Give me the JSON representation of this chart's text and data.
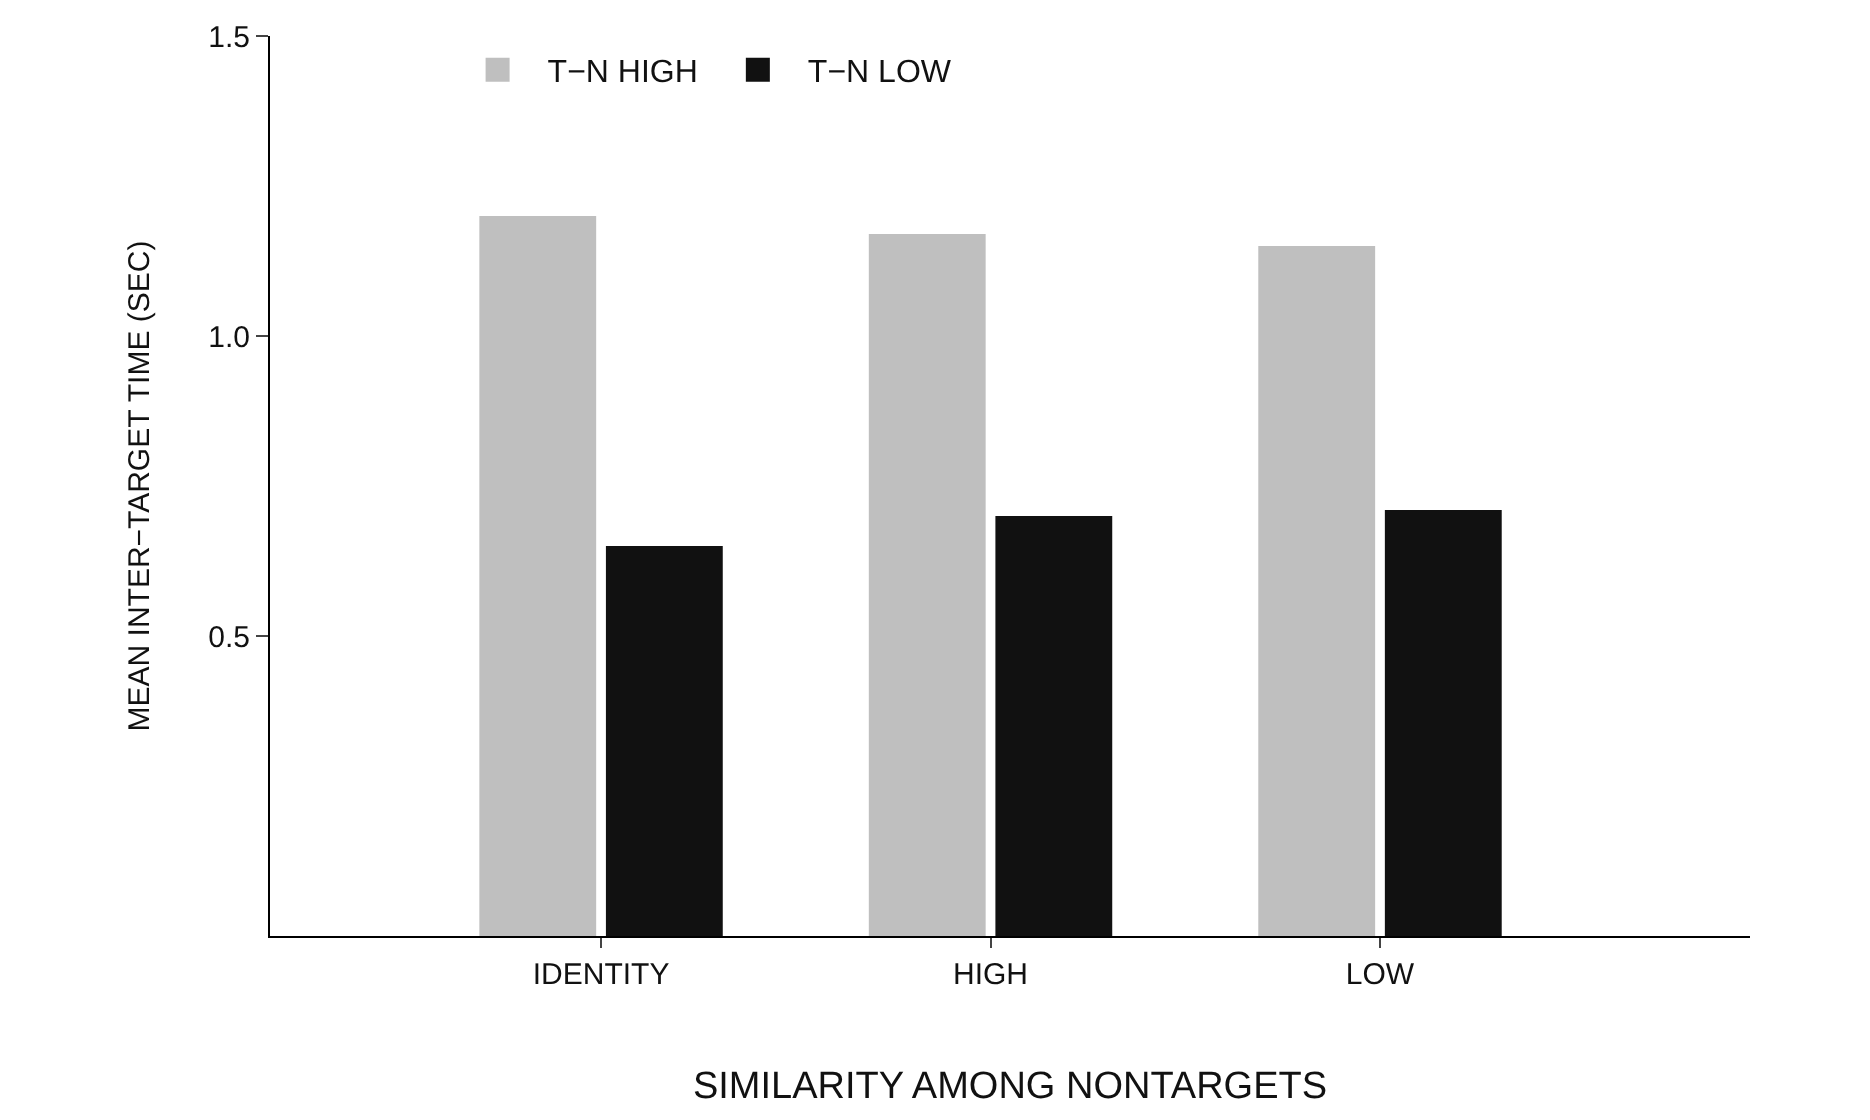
{
  "chart_data": {
    "type": "bar",
    "xlabel": "SIMILARITY AMONG NONTARGETS",
    "ylabel": "MEAN INTER−TARGET TIME (SEC)",
    "categories": [
      "IDENTITY",
      "HIGH",
      "LOW"
    ],
    "series": [
      {
        "name": "T−N HIGH",
        "color": "#bfbfbf",
        "values": [
          1.2,
          1.17,
          1.15
        ]
      },
      {
        "name": "T−N LOW",
        "color": "#111111",
        "values": [
          0.65,
          0.7,
          0.71
        ]
      }
    ],
    "ylim": [
      0,
      1.5
    ],
    "yticks": [
      0.5,
      {
        "value": 1,
        "label": "1.0"
      },
      {
        "value": 1.5,
        "label": "1.5"
      }
    ],
    "grid": false,
    "legend": "top"
  }
}
